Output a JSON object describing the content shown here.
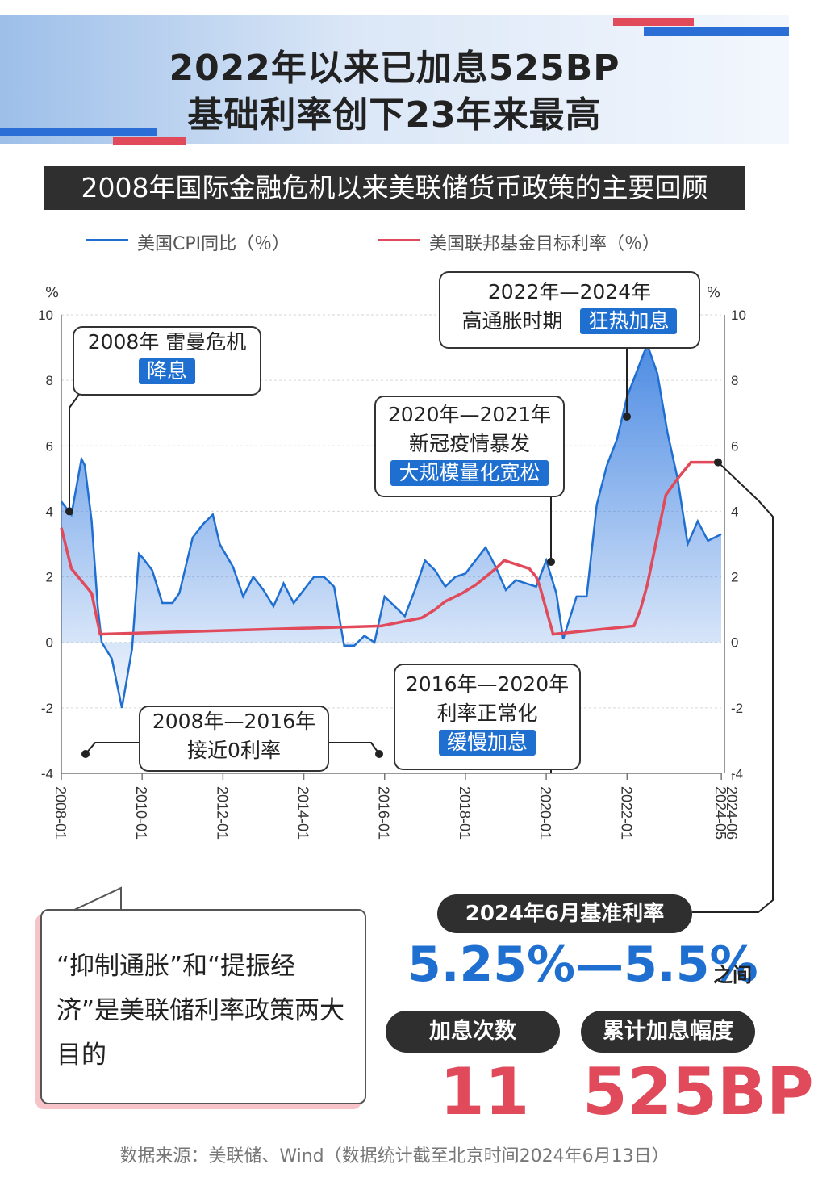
{
  "header": {
    "title_line1": "2022年以来已加息525BP",
    "title_line2": "基础利率创下23年来最高"
  },
  "subtitle": "2008年国际金融危机以来美联储货币政策的主要回顾",
  "legend": {
    "cpi": "美国CPI同比（％）",
    "fed": "美国联邦基金目标利率（％）"
  },
  "axis": {
    "left_unit": "%",
    "right_unit": "%",
    "y_ticks": [
      "10",
      "8",
      "6",
      "4",
      "2",
      "0",
      "-2",
      "-4"
    ],
    "x_ticks": [
      "2008-01",
      "2010-01",
      "2012-01",
      "2014-01",
      "2016-01",
      "2018-01",
      "2020-01",
      "2022-01",
      "2024-05",
      "2024-06"
    ]
  },
  "callouts": {
    "c2008": {
      "line1": "2008年 雷曼危机",
      "tag": "降息"
    },
    "c2008_2016": {
      "line1": "2008年—2016年",
      "line2": "接近0利率"
    },
    "c2016_2020": {
      "line1": "2016年—2020年",
      "line2": "利率正常化",
      "tag": "缓慢加息"
    },
    "c2020_2021": {
      "line1": "2020年—2021年",
      "line2": "新冠疫情暴发",
      "tag": "大规模量化宽松"
    },
    "c2022_2024": {
      "line1": "2022年—2024年",
      "line2": "高通胀时期",
      "tag": "狂热加息"
    }
  },
  "rate": {
    "label": "2024年6月基准利率",
    "range": "5.25%—5.5%",
    "suffix": "之间"
  },
  "stats": {
    "count_label": "加息次数",
    "count_value": "11",
    "total_label": "累计加息幅度",
    "total_value": "525BP"
  },
  "note": "“抑制通胀”和“提振经济”是美联储利率政策两大目的",
  "source": "数据来源：美联储、Wind（数据统计截至北京时间2024年6月13日）",
  "colors": {
    "cpi_line": "#1f6fd0",
    "fed_line": "#e04a5a",
    "tag_bg": "#1f6fd0",
    "big_blue": "#1f6fd0",
    "big_red": "#e04a5a",
    "dark_pill": "#2f2f2f"
  },
  "chart_data": {
    "type": "line",
    "ylim": [
      -4,
      10
    ],
    "x_range": [
      "2008-01",
      "2024-05"
    ],
    "series": [
      {
        "name": "美国CPI同比（％）",
        "x": [
          2008.0,
          2008.25,
          2008.5,
          2008.58,
          2008.75,
          2008.9,
          2009.0,
          2009.25,
          2009.5,
          2009.75,
          2009.92,
          2010.0,
          2010.25,
          2010.5,
          2010.75,
          2010.92,
          2011.25,
          2011.5,
          2011.75,
          2011.92,
          2012.25,
          2012.5,
          2012.75,
          2013.0,
          2013.25,
          2013.5,
          2013.75,
          2014.0,
          2014.25,
          2014.5,
          2014.75,
          2015.0,
          2015.25,
          2015.5,
          2015.75,
          2016.0,
          2016.25,
          2016.5,
          2016.75,
          2017.0,
          2017.25,
          2017.5,
          2017.75,
          2018.0,
          2018.25,
          2018.5,
          2018.75,
          2019.0,
          2019.25,
          2019.5,
          2019.75,
          2020.0,
          2020.25,
          2020.42,
          2020.75,
          2021.0,
          2021.25,
          2021.5,
          2021.75,
          2022.0,
          2022.25,
          2022.5,
          2022.75,
          2023.0,
          2023.25,
          2023.5,
          2023.75,
          2024.0,
          2024.33
        ],
        "values": [
          4.3,
          3.9,
          5.6,
          5.4,
          3.7,
          1.1,
          0.0,
          -0.5,
          -2.0,
          -0.2,
          2.7,
          2.6,
          2.2,
          1.2,
          1.2,
          1.5,
          3.2,
          3.6,
          3.9,
          3.0,
          2.3,
          1.4,
          2.0,
          1.6,
          1.1,
          1.8,
          1.2,
          1.6,
          2.0,
          2.0,
          1.7,
          -0.1,
          -0.1,
          0.2,
          0.0,
          1.4,
          1.1,
          0.8,
          1.6,
          2.5,
          2.2,
          1.7,
          2.0,
          2.1,
          2.5,
          2.9,
          2.3,
          1.6,
          1.9,
          1.8,
          1.7,
          2.5,
          1.5,
          0.1,
          1.4,
          1.4,
          4.2,
          5.4,
          6.2,
          7.5,
          8.3,
          9.1,
          8.2,
          6.4,
          5.0,
          3.0,
          3.7,
          3.1,
          3.3
        ]
      },
      {
        "name": "美国联邦基金目标利率（％）",
        "x": [
          2008.0,
          2008.25,
          2008.75,
          2008.96,
          2015.92,
          2016.92,
          2017.25,
          2017.5,
          2017.92,
          2018.25,
          2018.5,
          2018.75,
          2018.96,
          2019.58,
          2019.75,
          2019.83,
          2020.17,
          2022.17,
          2022.33,
          2022.5,
          2022.75,
          2022.96,
          2023.25,
          2023.58,
          2024.33
        ],
        "values": [
          3.5,
          2.25,
          1.5,
          0.25,
          0.5,
          0.75,
          1.0,
          1.25,
          1.5,
          1.75,
          2.0,
          2.25,
          2.5,
          2.25,
          2.0,
          1.75,
          0.25,
          0.5,
          1.0,
          1.75,
          3.25,
          4.5,
          5.0,
          5.5,
          5.5
        ]
      }
    ]
  }
}
